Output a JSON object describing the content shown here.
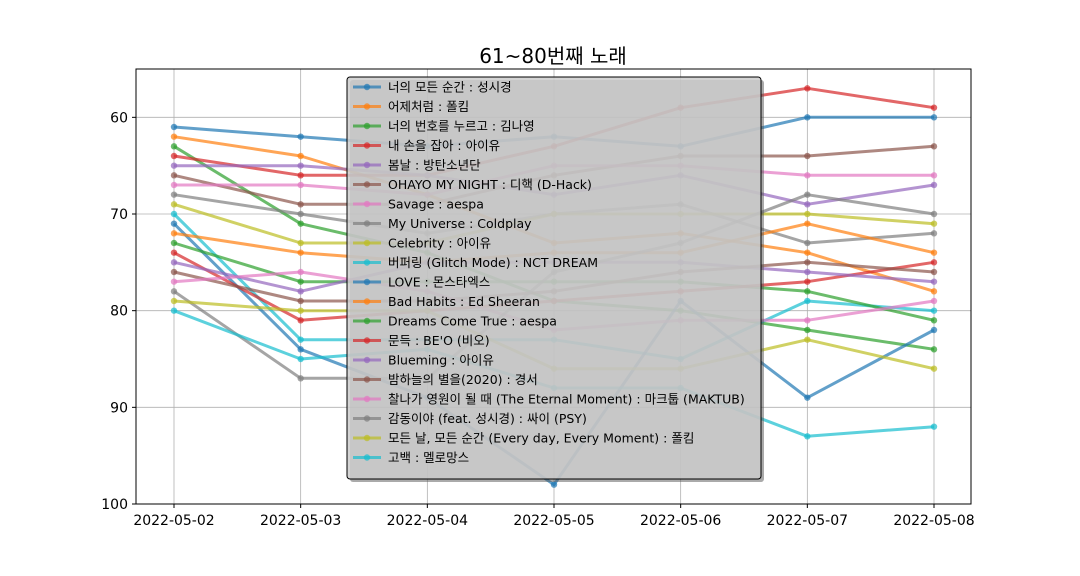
{
  "chart_data": {
    "type": "line",
    "title": "61~80번째 노래",
    "xlabel": "",
    "ylabel": "",
    "x": [
      "2022-05-02",
      "2022-05-03",
      "2022-05-04",
      "2022-05-05",
      "2022-05-06",
      "2022-05-07",
      "2022-05-08"
    ],
    "ylim": [
      100,
      55
    ],
    "y_inverted": true,
    "y_ticks": [
      60,
      70,
      80,
      90,
      100
    ],
    "grid": true,
    "legend_position": "upper-center",
    "series": [
      {
        "name": "너의 모든 순간 : 성시경",
        "color": "#1f77b4",
        "values": [
          61,
          62,
          63,
          62,
          63,
          60,
          60
        ]
      },
      {
        "name": "어제처럼 : 폴킴",
        "color": "#ff7f0e",
        "values": [
          62,
          64,
          68,
          73,
          72,
          74,
          78
        ]
      },
      {
        "name": "너의 번호를 누르고 : 김나영",
        "color": "#2ca02c",
        "values": [
          63,
          71,
          74,
          79,
          80,
          82,
          84
        ]
      },
      {
        "name": "내 손을 잡아 : 아이유",
        "color": "#d62728",
        "values": [
          64,
          66,
          66,
          63,
          59,
          57,
          59
        ]
      },
      {
        "name": "봄날 : 방탄소년단",
        "color": "#9467bd",
        "values": [
          65,
          65,
          66,
          68,
          66,
          69,
          67
        ]
      },
      {
        "name": "OHAYO MY NIGHT : 디핵 (D-Hack)",
        "color": "#8c564b",
        "values": [
          66,
          69,
          69,
          66,
          64,
          64,
          63
        ]
      },
      {
        "name": "Savage : aespa",
        "color": "#e377c2",
        "values": [
          67,
          67,
          68,
          65,
          65,
          66,
          66
        ]
      },
      {
        "name": "My Universe : Coldplay",
        "color": "#7f7f7f",
        "values": [
          68,
          70,
          72,
          70,
          69,
          73,
          72
        ]
      },
      {
        "name": "Celebrity : 아이유",
        "color": "#bcbd22",
        "values": [
          69,
          73,
          73,
          70,
          70,
          70,
          71
        ]
      },
      {
        "name": "버퍼링 (Glitch Mode) : NCT DREAM",
        "color": "#17becf",
        "values": [
          70,
          83,
          83,
          83,
          85,
          79,
          80
        ]
      },
      {
        "name": "LOVE : 몬스타엑스",
        "color": "#1f77b4",
        "values": [
          71,
          84,
          89,
          98,
          79,
          89,
          82
        ]
      },
      {
        "name": "Bad Habits : Ed Sheeran",
        "color": "#ff7f0e",
        "values": [
          72,
          74,
          75,
          74,
          74,
          71,
          74
        ]
      },
      {
        "name": "Dreams Come True : aespa",
        "color": "#2ca02c",
        "values": [
          73,
          77,
          77,
          77,
          77,
          78,
          81
        ]
      },
      {
        "name": "문득 : BE'O (비오)",
        "color": "#d62728",
        "values": [
          74,
          81,
          80,
          79,
          78,
          77,
          75
        ]
      },
      {
        "name": "Blueming : 아이유",
        "color": "#9467bd",
        "values": [
          75,
          78,
          75,
          75,
          75,
          76,
          77
        ]
      },
      {
        "name": "밤하늘의 별을(2020) : 경서",
        "color": "#8c564b",
        "values": [
          76,
          79,
          79,
          78,
          76,
          75,
          76
        ]
      },
      {
        "name": "찰나가 영원이 될 때 (The Eternal Moment) : 마크툽 (MAKTUB)",
        "color": "#e377c2",
        "values": [
          77,
          76,
          78,
          82,
          81,
          81,
          79
        ]
      },
      {
        "name": "감동이야 (feat. 성시경) : 싸이 (PSY)",
        "color": "#7f7f7f",
        "values": [
          78,
          87,
          87,
          76,
          73,
          68,
          70
        ]
      },
      {
        "name": "모든 날, 모든 순간 (Every day, Every Moment) : 폴킴",
        "color": "#bcbd22",
        "values": [
          79,
          80,
          80,
          86,
          86,
          83,
          86
        ]
      },
      {
        "name": "고백 : 멜로망스",
        "color": "#17becf",
        "values": [
          80,
          85,
          84,
          88,
          88,
          93,
          92
        ]
      }
    ]
  }
}
